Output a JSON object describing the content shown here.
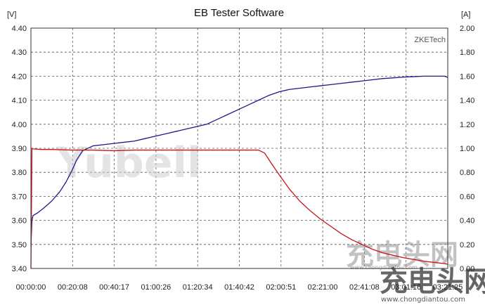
{
  "chart_data": {
    "type": "line",
    "title": "EB Tester Software",
    "brand": "ZKETech",
    "y_left": {
      "unit": "[V]",
      "range": [
        3.4,
        4.4
      ],
      "ticks": [
        "4.40",
        "4.30",
        "4.20",
        "4.10",
        "4.00",
        "3.90",
        "3.80",
        "3.70",
        "3.60",
        "3.50",
        "3.40"
      ]
    },
    "y_right": {
      "unit": "[A]",
      "range": [
        0.0,
        2.0
      ],
      "ticks": [
        "2.00",
        "1.80",
        "1.60",
        "1.40",
        "1.20",
        "1.00",
        "0.80",
        "0.60",
        "0.40",
        "0.20",
        "0.00"
      ]
    },
    "x_axis": {
      "range_minutes": [
        0,
        201.5
      ],
      "ticks": [
        "00:00:00",
        "00:20:08",
        "00:40:17",
        "01:00:26",
        "01:20:34",
        "01:40:42",
        "02:00:51",
        "02:21:00",
        "02:41:08",
        "03:01:16",
        "03:21:25"
      ]
    },
    "grid": true,
    "series": [
      {
        "axis": "left",
        "color": "#1a1a8c",
        "x_minutes": [
          0,
          0.5,
          1,
          3,
          6,
          10,
          14,
          17,
          20,
          22,
          25,
          30,
          35,
          40,
          45,
          50,
          55,
          60,
          65,
          70,
          75,
          80,
          85,
          90,
          95,
          100,
          105,
          110,
          115,
          120,
          125,
          130,
          135,
          140,
          145,
          150,
          155,
          160,
          165,
          170,
          175,
          180,
          185,
          190,
          195,
          200,
          201.5
        ],
        "values": [
          3.5,
          3.6,
          3.62,
          3.63,
          3.65,
          3.68,
          3.72,
          3.76,
          3.81,
          3.85,
          3.89,
          3.91,
          3.915,
          3.92,
          3.925,
          3.93,
          3.94,
          3.95,
          3.96,
          3.97,
          3.98,
          3.99,
          4.0,
          4.02,
          4.04,
          4.06,
          4.08,
          4.1,
          4.12,
          4.135,
          4.145,
          4.15,
          4.155,
          4.16,
          4.165,
          4.17,
          4.175,
          4.18,
          4.185,
          4.19,
          4.193,
          4.196,
          4.198,
          4.2,
          4.2,
          4.2,
          4.195
        ]
      },
      {
        "axis": "right",
        "color": "#c81414",
        "x_minutes": [
          0,
          0.5,
          1,
          5,
          10,
          20,
          30,
          40,
          50,
          60,
          70,
          80,
          90,
          100,
          110,
          113,
          116,
          120,
          125,
          130,
          135,
          140,
          145,
          150,
          155,
          160,
          165,
          170,
          175,
          180,
          185,
          190,
          195,
          200,
          201.5
        ],
        "values": [
          0.0,
          1.0,
          0.995,
          0.99,
          0.99,
          0.985,
          0.985,
          0.98,
          0.985,
          0.985,
          0.985,
          0.985,
          0.985,
          0.985,
          0.985,
          0.96,
          0.88,
          0.78,
          0.66,
          0.56,
          0.48,
          0.41,
          0.35,
          0.29,
          0.24,
          0.2,
          0.16,
          0.13,
          0.11,
          0.09,
          0.075,
          0.06,
          0.05,
          0.04,
          0.035
        ]
      }
    ]
  },
  "watermarks": {
    "main": "Yubell",
    "site_logo": "充电头网",
    "site_url": "www.chongdiantou.com",
    "site_url_small": "www.chongdiantou.com"
  }
}
